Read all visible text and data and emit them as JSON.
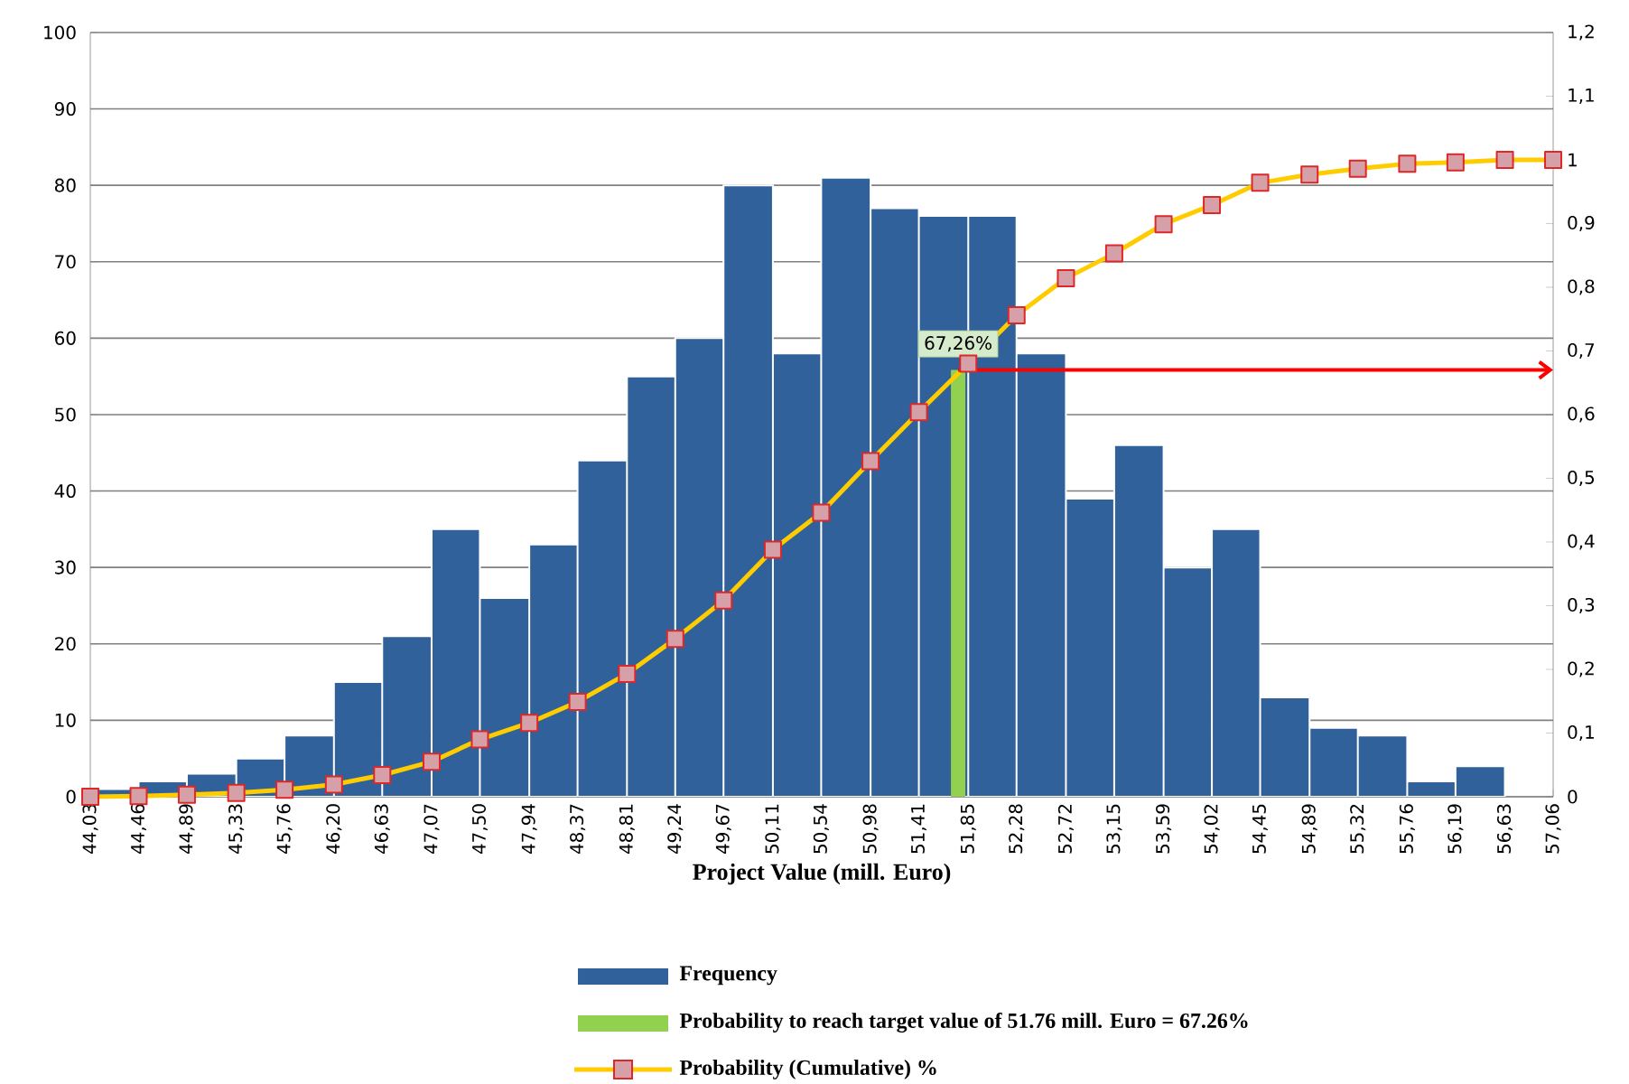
{
  "chart_data": {
    "type": "histogram",
    "xlabel": "Project Value (mill. Euro)",
    "bins": [
      44.03,
      44.46,
      44.89,
      45.33,
      45.76,
      46.2,
      46.63,
      47.07,
      47.5,
      47.94,
      48.37,
      48.81,
      49.24,
      49.67,
      50.11,
      50.54,
      50.98,
      51.41,
      51.85,
      52.28,
      52.72,
      53.15,
      53.59,
      54.02,
      54.45,
      54.89,
      55.32,
      55.76,
      56.19,
      56.63
    ],
    "series": [
      {
        "name": "Frequency",
        "color": "#31619a",
        "values": [
          1,
          2,
          3,
          5,
          8,
          15,
          21,
          35,
          26,
          33,
          44,
          55,
          60,
          80,
          58,
          81,
          77,
          76,
          76,
          58,
          39,
          46,
          30,
          35,
          13,
          9,
          8,
          2,
          4
        ]
      },
      {
        "type": "bar",
        "name": "Probability to reach target value of 51.76 mill. Euro = 67.26%",
        "color": "#92d050",
        "axis": "y2",
        "x": [
          51.76
        ],
        "values": [
          0.67
        ]
      },
      {
        "type": "line",
        "name": "Probability (Cumulative) %",
        "color": "#ffcc00",
        "axis": "y2",
        "marker": "square",
        "line_style": "solid",
        "x": [
          44.03,
          44.46,
          44.89,
          45.33,
          45.76,
          46.2,
          46.63,
          47.07,
          47.5,
          47.94,
          48.37,
          48.81,
          49.24,
          49.67,
          50.11,
          50.54,
          50.98,
          51.41,
          51.85,
          52.28,
          52.72,
          53.15,
          53.59,
          54.02,
          54.45,
          54.89,
          55.32,
          55.76,
          56.19,
          56.63,
          57.06
        ],
        "values": [
          0,
          0.001,
          0.003,
          0.006,
          0.011,
          0.019,
          0.034,
          0.055,
          0.09,
          0.116,
          0.149,
          0.193,
          0.248,
          0.308,
          0.388,
          0.446,
          0.527,
          0.604,
          0.68,
          0.756,
          0.814,
          0.853,
          0.899,
          0.929,
          0.964,
          0.977,
          0.986,
          0.994,
          0.996,
          1.0,
          1.0
        ]
      }
    ],
    "annotations": [
      "67,26%"
    ],
    "xlim": [
      44.03,
      57.06
    ],
    "xticks": [
      {
        "value": 44.03,
        "label": "44,03"
      },
      {
        "value": 44.46,
        "label": "44,46"
      },
      {
        "value": 44.89,
        "label": "44,89"
      },
      {
        "value": 45.33,
        "label": "45,33"
      },
      {
        "value": 45.76,
        "label": "45,76"
      },
      {
        "value": 46.2,
        "label": "46,20"
      },
      {
        "value": 46.63,
        "label": "46,63"
      },
      {
        "value": 47.07,
        "label": "47,07"
      },
      {
        "value": 47.5,
        "label": "47,50"
      },
      {
        "value": 47.94,
        "label": "47,94"
      },
      {
        "value": 48.37,
        "label": "48,37"
      },
      {
        "value": 48.81,
        "label": "48,81"
      },
      {
        "value": 49.24,
        "label": "49,24"
      },
      {
        "value": 49.67,
        "label": "49,67"
      },
      {
        "value": 50.11,
        "label": "50,11"
      },
      {
        "value": 50.54,
        "label": "50,54"
      },
      {
        "value": 50.98,
        "label": "50,98"
      },
      {
        "value": 51.41,
        "label": "51,41"
      },
      {
        "value": 51.85,
        "label": "51,85"
      },
      {
        "value": 52.28,
        "label": "52,28"
      },
      {
        "value": 52.72,
        "label": "52,72"
      },
      {
        "value": 53.15,
        "label": "53,15"
      },
      {
        "value": 53.59,
        "label": "53,59"
      },
      {
        "value": 54.02,
        "label": "54,02"
      },
      {
        "value": 54.45,
        "label": "54,45"
      },
      {
        "value": 54.89,
        "label": "54,89"
      },
      {
        "value": 55.32,
        "label": "55,32"
      },
      {
        "value": 55.76,
        "label": "55,76"
      },
      {
        "value": 56.19,
        "label": "56,19"
      },
      {
        "value": 56.63,
        "label": "56,63"
      },
      {
        "value": 57.06,
        "label": "57,06"
      }
    ],
    "ylim": [
      0,
      100
    ],
    "yticks": [
      0,
      10,
      20,
      30,
      40,
      50,
      60,
      70,
      80,
      90,
      100
    ],
    "y2lim": [
      0,
      1.2
    ],
    "y2ticks": [
      0,
      {
        "value": 0.1,
        "label": "0,1"
      },
      {
        "value": 0.2,
        "label": "0,2"
      },
      {
        "value": 0.3,
        "label": "0,3"
      },
      {
        "value": 0.4,
        "label": "0,4"
      },
      {
        "value": 0.5,
        "label": "0,5"
      },
      {
        "value": 0.6,
        "label": "0,6"
      },
      {
        "value": 0.7,
        "label": "0,7"
      },
      {
        "value": 0.8,
        "label": "0,8"
      },
      {
        "value": 0.9,
        "label": "0,9"
      },
      1,
      {
        "value": 1.1,
        "label": "1,1"
      },
      {
        "value": 1.2,
        "label": "1,2"
      }
    ],
    "grid": "y",
    "legend": "bottom"
  }
}
